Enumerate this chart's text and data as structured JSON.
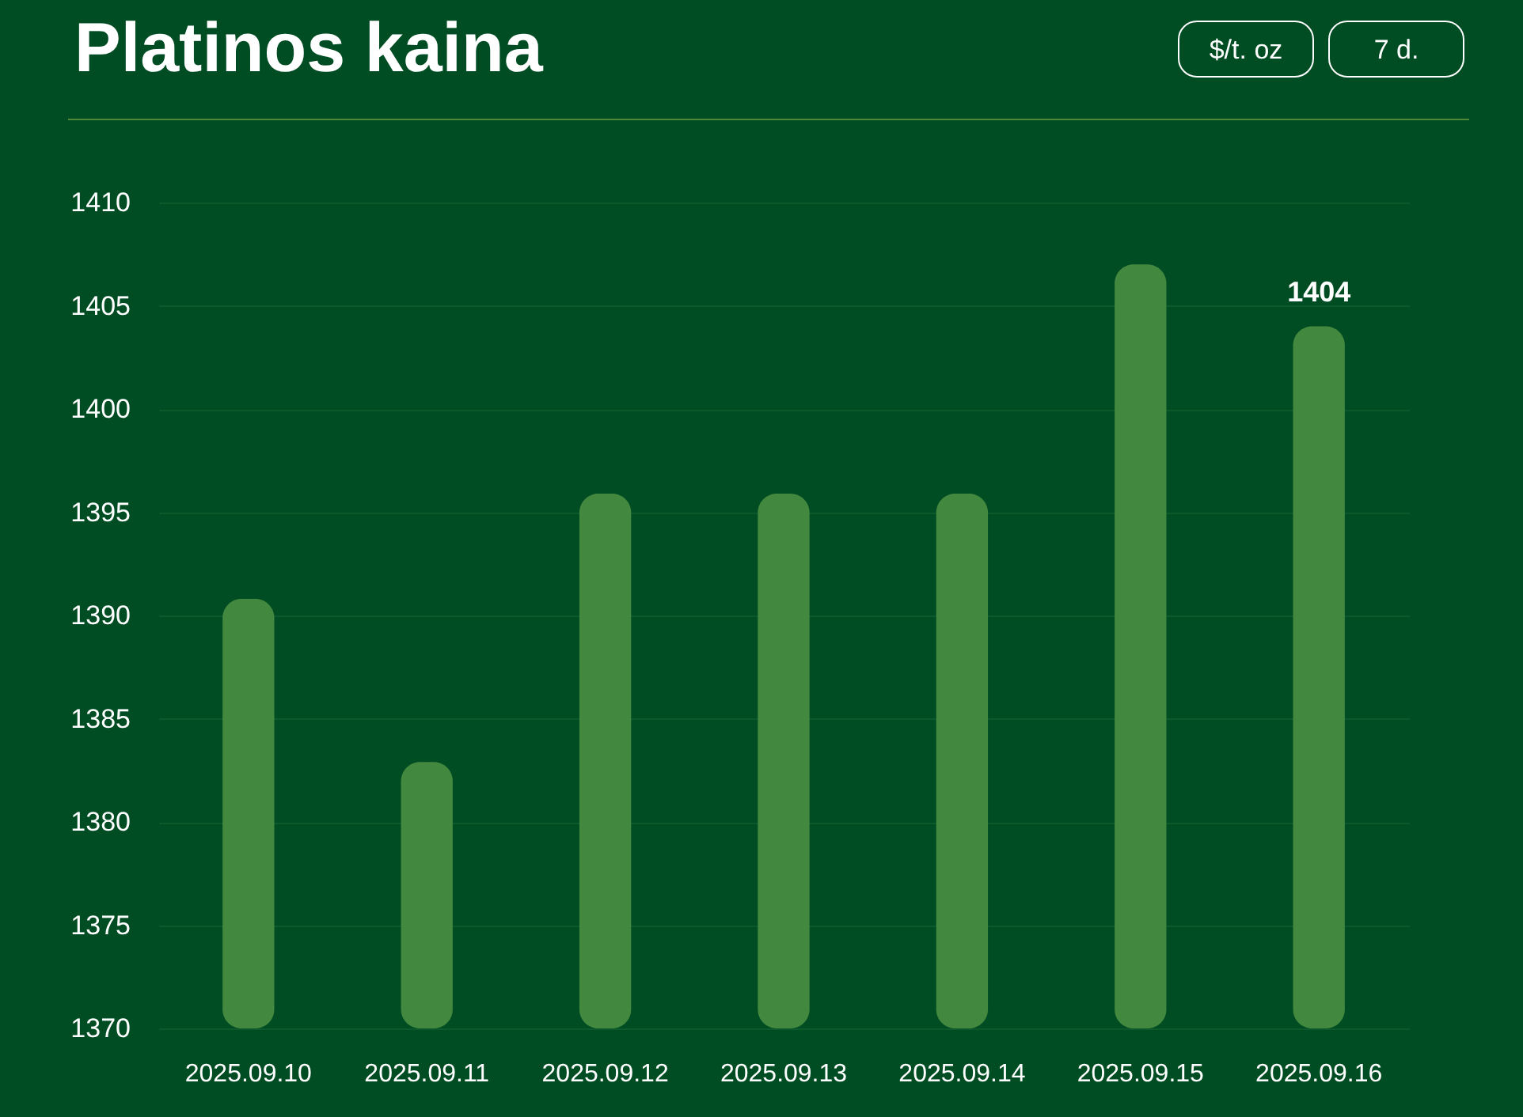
{
  "chart_data": {
    "type": "bar",
    "title": "Platinos kaina",
    "annotations": [
      "$/t. oz",
      "7 d."
    ],
    "categories": [
      "2025.09.10",
      "2025.09.11",
      "2025.09.12",
      "2025.09.13",
      "2025.09.14",
      "2025.09.15",
      "2025.09.16"
    ],
    "values": [
      1390.8,
      1382.9,
      1395.9,
      1395.9,
      1395.9,
      1407.0,
      1404
    ],
    "value_labels": [
      null,
      null,
      null,
      null,
      null,
      null,
      "1404"
    ],
    "color": "#43883f",
    "ylim": [
      1370,
      1410
    ],
    "yticks": [
      1370,
      1375,
      1380,
      1385,
      1390,
      1395,
      1400,
      1405,
      1410
    ],
    "grid": "y"
  }
}
